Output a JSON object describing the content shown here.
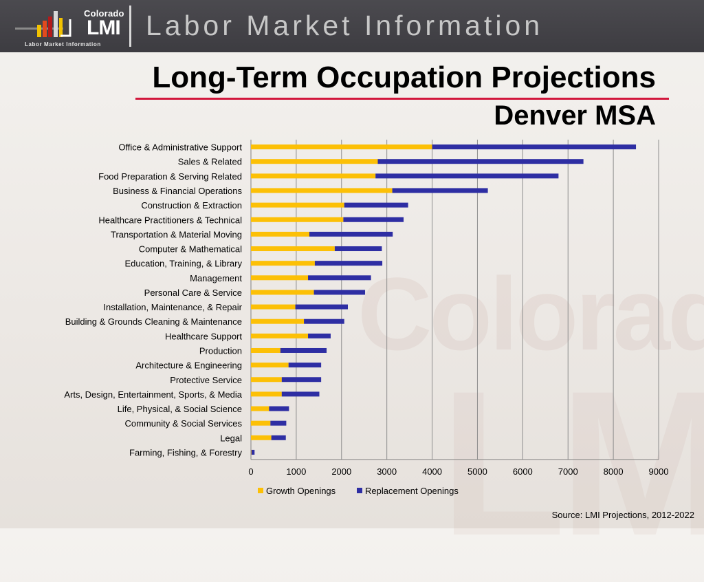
{
  "header": {
    "logo_top": "Colorado",
    "logo_main": "LMI",
    "logo_sub": "Labor Market Information",
    "title": "Labor Market Information"
  },
  "page": {
    "title": "Long-Term Occupation Projections",
    "subtitle": "Denver MSA",
    "watermark": "Colorado",
    "watermark2": "LMI",
    "source": "Source: LMI Projections, 2012-2022"
  },
  "colors": {
    "growth": "#fcc006",
    "replacement": "#2e2ea3",
    "gridline": "#8c8c8c",
    "accent_rule": "#d2173c"
  },
  "chart_data": {
    "type": "bar",
    "orientation": "horizontal",
    "stacked": true,
    "categories": [
      "Office & Administrative Support",
      "Sales & Related",
      "Food Preparation & Serving Related",
      "Business & Financial Operations",
      "Construction & Extraction",
      "Healthcare Practitioners & Technical",
      "Transportation & Material Moving",
      "Computer & Mathematical",
      "Education, Training, & Library",
      "Management",
      "Personal Care & Service",
      "Installation, Maintenance, & Repair",
      "Building & Grounds Cleaning & Maintenance",
      "Healthcare Support",
      "Production",
      "Architecture & Engineering",
      "Protective Service",
      "Arts, Design, Entertainment, Sports, & Media",
      "Life, Physical, & Social Science",
      "Community & Social Services",
      "Legal",
      "Farming, Fishing, & Forestry"
    ],
    "series": [
      {
        "name": "Growth Openings",
        "values": [
          4000,
          2800,
          2750,
          3120,
          2060,
          2040,
          1290,
          1850,
          1410,
          1260,
          1390,
          980,
          1170,
          1260,
          650,
          830,
          680,
          680,
          400,
          430,
          450,
          10
        ]
      },
      {
        "name": "Replacement Openings",
        "values": [
          4500,
          4540,
          4040,
          2110,
          1410,
          1330,
          1840,
          1040,
          1490,
          1390,
          1130,
          1160,
          890,
          500,
          1020,
          720,
          870,
          830,
          440,
          350,
          320,
          70
        ]
      }
    ],
    "xlim": [
      0,
      9000
    ],
    "xticks": [
      "0",
      "1000",
      "2000",
      "3000",
      "4000",
      "5000",
      "6000",
      "7000",
      "8000",
      "9000"
    ],
    "grid": true,
    "legend": "bottom"
  }
}
